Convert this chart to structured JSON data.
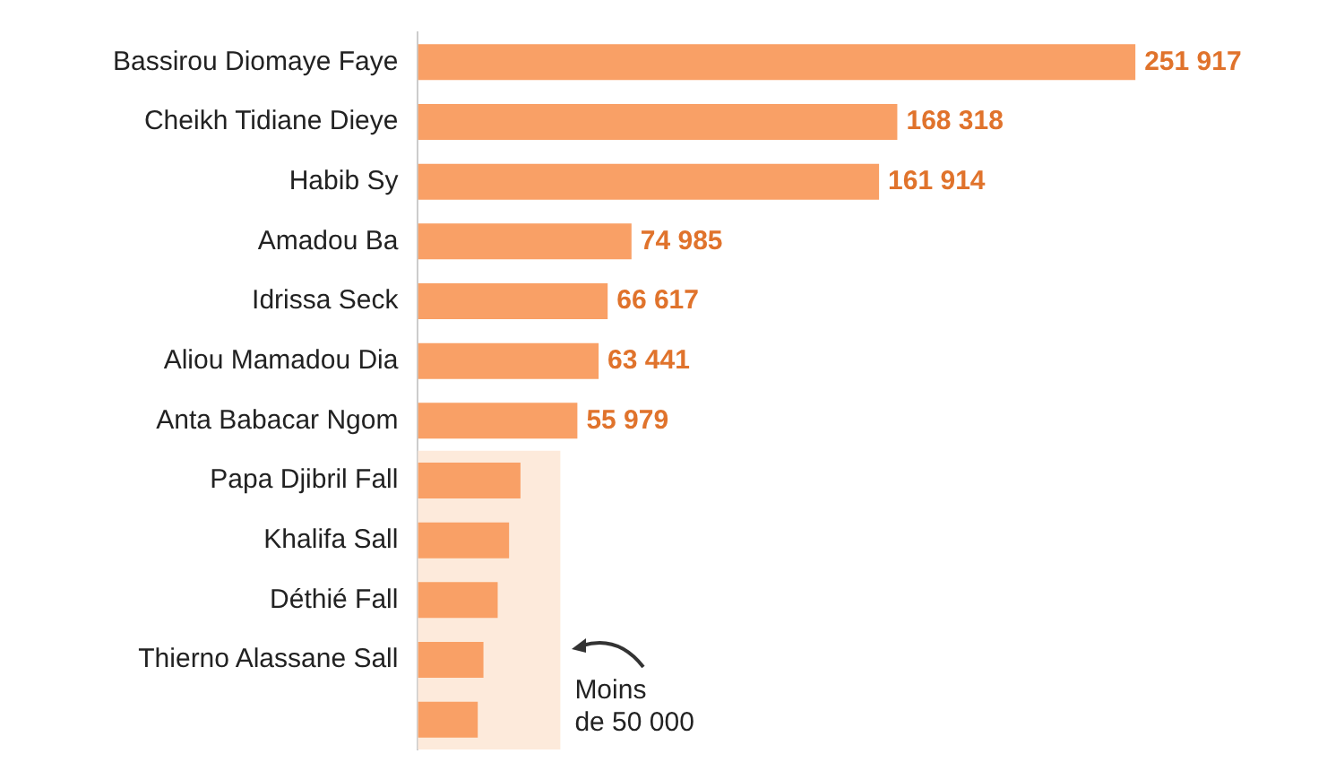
{
  "chart_data": {
    "type": "bar",
    "orientation": "horizontal",
    "categories": [
      "Bassirou Diomaye Faye",
      "Cheikh Tidiane Dieye",
      "Habib Sy",
      "Amadou Ba",
      "Idrissa Seck",
      "Aliou Mamadou Dia",
      "Anta Babacar Ngom",
      "Papa Djibril Fall",
      "Khalifa Sall",
      "Déthié Fall",
      "Thierno Alassane Sall",
      null
    ],
    "values": [
      251917,
      168318,
      161914,
      74985,
      66617,
      63441,
      55979,
      36000,
      32000,
      28000,
      23000,
      21000
    ],
    "value_labels": [
      "251 917",
      "168 318",
      "161 914",
      "74 985",
      "66 617",
      "63 441",
      "55 979",
      null,
      null,
      null,
      null,
      null
    ],
    "color": "#f9a066",
    "tick_labels": "y",
    "bands": [
      {
        "axis": "x",
        "from": 0,
        "to": 50000,
        "label": "Moins de 50 000",
        "color": "#fdeadb"
      }
    ]
  }
}
